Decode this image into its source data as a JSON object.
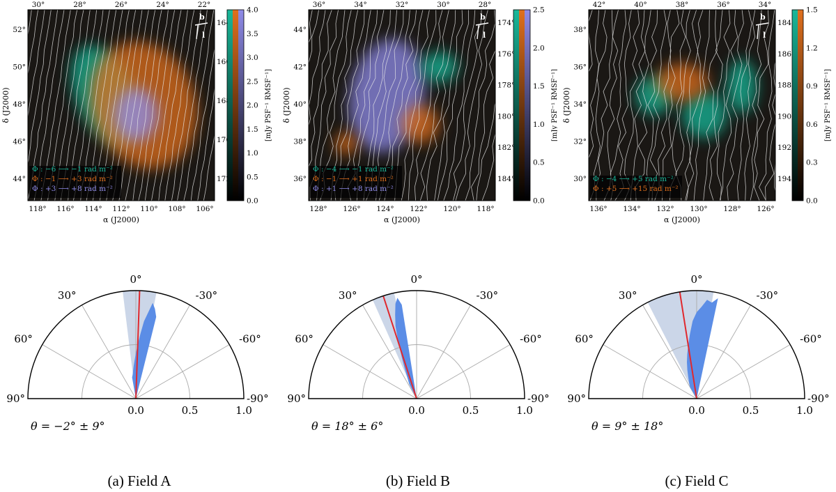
{
  "panels": [
    {
      "id": "A",
      "caption": "(a) Field A",
      "map": {
        "top_ticks": [
          "30°",
          "28°",
          "26°",
          "24°",
          "22°"
        ],
        "left_ticks": [
          "52°",
          "50°",
          "48°",
          "46°",
          "44°"
        ],
        "bottom_ticks": [
          "118°",
          "116°",
          "114°",
          "112°",
          "110°",
          "108°",
          "106°"
        ],
        "right_ticks": [
          "164°",
          "166°",
          "168°",
          "170°",
          "172°"
        ],
        "xlabel": "α (J2000)",
        "ylabel": "δ (J2000)",
        "legend": [
          {
            "text": "Φ : −6 ⟶ −1 rad m⁻²",
            "color": "#19b89a"
          },
          {
            "text": "Φ : −1 ⟶ +3 rad m⁻²",
            "color": "#e0701e"
          },
          {
            "text": "Φ : +3 ⟶ +8 rad m⁻²",
            "color": "#8f8be8"
          }
        ],
        "compass": {
          "b": "b",
          "l": "l"
        },
        "colorbar": {
          "ticks": [
            "4.0",
            "3.5",
            "3.0",
            "2.5",
            "2.0",
            "1.5",
            "1.0",
            "0.5",
            "0.0"
          ],
          "label": "[mJy PSF⁻¹ RMSF⁻¹]",
          "colors": [
            "#19b89a",
            "#e0701e",
            "#8f8be8"
          ]
        }
      },
      "polar": {
        "angle_labels": [
          "0°",
          "30°",
          "-30°",
          "60°",
          "-60°",
          "90°",
          "-90°"
        ],
        "radial_labels": [
          "0.0",
          "0.5",
          "1.0"
        ],
        "theta_text": "θ = −2° ± 9°",
        "mean_angle_deg": -2,
        "uncertainty_deg": 9
      }
    },
    {
      "id": "B",
      "caption": "(b) Field B",
      "map": {
        "top_ticks": [
          "36°",
          "34°",
          "32°",
          "30°",
          "28°"
        ],
        "left_ticks": [
          "44°",
          "42°",
          "40°",
          "38°",
          "36°"
        ],
        "bottom_ticks": [
          "128°",
          "126°",
          "124°",
          "122°",
          "120°",
          "118°"
        ],
        "right_ticks": [
          "174°",
          "176°",
          "178°",
          "180°",
          "182°",
          "184°"
        ],
        "xlabel": "α (J2000)",
        "ylabel": "δ (J2000)",
        "legend": [
          {
            "text": "Φ : −4 ⟶ −1 rad m⁻²",
            "color": "#19b89a"
          },
          {
            "text": "Φ : −1 ⟶ +1 rad m⁻²",
            "color": "#e0701e"
          },
          {
            "text": "Φ : +1 ⟶ +8 rad m⁻²",
            "color": "#8f8be8"
          }
        ],
        "compass": {
          "b": "b",
          "l": "l"
        },
        "colorbar": {
          "ticks": [
            "2.5",
            "2.0",
            "1.5",
            "1.0",
            "0.5",
            "0.0"
          ],
          "label": "[mJy PSF⁻¹ RMSF⁻¹]",
          "colors": [
            "#19b89a",
            "#e0701e",
            "#8f8be8"
          ]
        }
      },
      "polar": {
        "angle_labels": [
          "0°",
          "30°",
          "-30°",
          "60°",
          "-60°",
          "90°",
          "-90°"
        ],
        "radial_labels": [
          "0.0",
          "0.5",
          "1.0"
        ],
        "theta_text": "θ = 18° ± 6°",
        "mean_angle_deg": 18,
        "uncertainty_deg": 6
      }
    },
    {
      "id": "C",
      "caption": "(c) Field C",
      "map": {
        "top_ticks": [
          "42°",
          "40°",
          "38°",
          "36°",
          "34°"
        ],
        "left_ticks": [
          "38°",
          "36°",
          "34°",
          "32°",
          "30°"
        ],
        "bottom_ticks": [
          "136°",
          "134°",
          "132°",
          "130°",
          "128°",
          "126°"
        ],
        "right_ticks": [
          "184°",
          "186°",
          "188°",
          "190°",
          "192°",
          "194°"
        ],
        "xlabel": "α (J2000)",
        "ylabel": "δ (J2000)",
        "legend": [
          {
            "text": "Φ : −4 ⟶ +5 rad m⁻²",
            "color": "#19b89a"
          },
          {
            "text": "Φ : +5 ⟶ +15 rad m⁻²",
            "color": "#e0701e"
          }
        ],
        "compass": {
          "b": "b",
          "l": "l"
        },
        "colorbar": {
          "ticks": [
            "1.5",
            "1.2",
            "0.9",
            "0.6",
            "0.3",
            "0.0"
          ],
          "label": "[mJy PSF⁻¹ RMSF⁻¹]",
          "colors": [
            "#19b89a",
            "#e0701e"
          ]
        }
      },
      "polar": {
        "angle_labels": [
          "0°",
          "30°",
          "-30°",
          "60°",
          "-60°",
          "90°",
          "-90°"
        ],
        "radial_labels": [
          "0.0",
          "0.5",
          "1.0"
        ],
        "theta_text": "θ = 9° ± 18°",
        "mean_angle_deg": 9,
        "uncertainty_deg": 18
      }
    }
  ],
  "colors": {
    "map_background": "#1a1714",
    "hist_fill": "#5b8de6",
    "mean_line": "#e0282d",
    "wedge_fill": "#b9c8e0",
    "streamlines": "#e8e8e8"
  }
}
